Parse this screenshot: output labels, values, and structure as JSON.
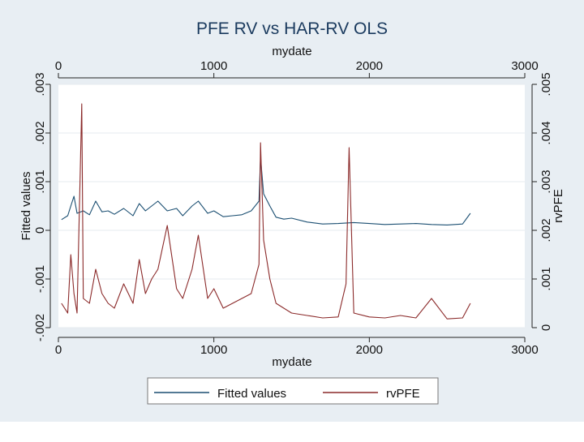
{
  "chart_data": {
    "type": "line",
    "title": "PFE RV vs HAR-RV OLS",
    "xlabel_top": "mydate",
    "xlabel_bottom": "mydate",
    "ylabel_left": "Fitted values",
    "ylabel_right": "rvPFE",
    "xlim": [
      0,
      3000
    ],
    "x_ticks": [
      0,
      1000,
      2000,
      3000
    ],
    "x_tick_labels": [
      "0",
      "1000",
      "2000",
      "3000"
    ],
    "left_ylim": [
      -0.002,
      0.003
    ],
    "left_ticks": [
      -0.002,
      -0.001,
      0,
      0.001,
      0.002,
      0.003
    ],
    "left_tick_labels": [
      "-.002",
      "-.001",
      "0",
      ".001",
      ".002",
      ".003"
    ],
    "right_ylim": [
      0,
      0.005
    ],
    "right_ticks": [
      0,
      0.001,
      0.002,
      0.003,
      0.004,
      0.005
    ],
    "right_tick_labels": [
      "0",
      ".001",
      ".002",
      ".003",
      ".004",
      ".005"
    ],
    "grid": true,
    "legend_position": "bottom",
    "series": [
      {
        "name": "Fitted values",
        "axis": "left",
        "color": "#1b4f72",
        "points": [
          [
            20,
            0.00022
          ],
          [
            60,
            0.0003
          ],
          [
            80,
            0.0005
          ],
          [
            100,
            0.0007
          ],
          [
            120,
            0.00035
          ],
          [
            160,
            0.0004
          ],
          [
            200,
            0.00032
          ],
          [
            240,
            0.0006
          ],
          [
            280,
            0.00038
          ],
          [
            320,
            0.0004
          ],
          [
            360,
            0.00033
          ],
          [
            420,
            0.00045
          ],
          [
            480,
            0.0003
          ],
          [
            520,
            0.00055
          ],
          [
            560,
            0.0004
          ],
          [
            600,
            0.0005
          ],
          [
            640,
            0.0006
          ],
          [
            700,
            0.0004
          ],
          [
            760,
            0.00045
          ],
          [
            800,
            0.0003
          ],
          [
            860,
            0.0005
          ],
          [
            900,
            0.0006
          ],
          [
            960,
            0.00035
          ],
          [
            1000,
            0.0004
          ],
          [
            1060,
            0.00028
          ],
          [
            1120,
            0.0003
          ],
          [
            1180,
            0.00032
          ],
          [
            1240,
            0.0004
          ],
          [
            1290,
            0.0006
          ],
          [
            1300,
            0.0015
          ],
          [
            1320,
            0.00075
          ],
          [
            1360,
            0.0005
          ],
          [
            1400,
            0.00027
          ],
          [
            1450,
            0.00023
          ],
          [
            1500,
            0.00025
          ],
          [
            1600,
            0.00017
          ],
          [
            1700,
            0.00013
          ],
          [
            1800,
            0.00014
          ],
          [
            1900,
            0.00016
          ],
          [
            2000,
            0.00014
          ],
          [
            2100,
            0.00012
          ],
          [
            2200,
            0.00013
          ],
          [
            2300,
            0.00014
          ],
          [
            2400,
            0.00012
          ],
          [
            2500,
            0.00011
          ],
          [
            2600,
            0.00013
          ],
          [
            2650,
            0.00035
          ]
        ]
      },
      {
        "name": "rvPFE",
        "axis": "right",
        "color": "#8b2a2a",
        "points": [
          [
            20,
            0.0005
          ],
          [
            60,
            0.0003
          ],
          [
            80,
            0.0015
          ],
          [
            100,
            0.0007
          ],
          [
            120,
            0.0003
          ],
          [
            150,
            0.0046
          ],
          [
            160,
            0.0006
          ],
          [
            200,
            0.0005
          ],
          [
            240,
            0.0012
          ],
          [
            280,
            0.0007
          ],
          [
            320,
            0.0005
          ],
          [
            360,
            0.0004
          ],
          [
            420,
            0.0009
          ],
          [
            480,
            0.0005
          ],
          [
            520,
            0.0014
          ],
          [
            560,
            0.0007
          ],
          [
            600,
            0.001
          ],
          [
            640,
            0.0012
          ],
          [
            700,
            0.0021
          ],
          [
            760,
            0.0008
          ],
          [
            800,
            0.0006
          ],
          [
            860,
            0.0012
          ],
          [
            900,
            0.0019
          ],
          [
            960,
            0.0006
          ],
          [
            1000,
            0.0008
          ],
          [
            1060,
            0.0004
          ],
          [
            1120,
            0.0005
          ],
          [
            1180,
            0.0006
          ],
          [
            1240,
            0.0007
          ],
          [
            1290,
            0.0013
          ],
          [
            1300,
            0.0038
          ],
          [
            1320,
            0.0018
          ],
          [
            1360,
            0.001
          ],
          [
            1400,
            0.0005
          ],
          [
            1450,
            0.0004
          ],
          [
            1500,
            0.0003
          ],
          [
            1600,
            0.00025
          ],
          [
            1700,
            0.0002
          ],
          [
            1800,
            0.00022
          ],
          [
            1850,
            0.0009
          ],
          [
            1870,
            0.0037
          ],
          [
            1900,
            0.0003
          ],
          [
            2000,
            0.00022
          ],
          [
            2100,
            0.0002
          ],
          [
            2200,
            0.00025
          ],
          [
            2300,
            0.0002
          ],
          [
            2400,
            0.0006
          ],
          [
            2500,
            0.00018
          ],
          [
            2600,
            0.0002
          ],
          [
            2650,
            0.0005
          ]
        ]
      }
    ]
  }
}
